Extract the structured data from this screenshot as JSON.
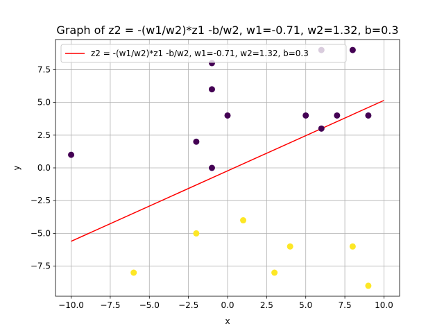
{
  "chart_data": {
    "type": "scatter",
    "title": "Graph of z2 = -(w1/w2)*z1 -b/w2, w1=-0.71, w2=1.32, b=0.3",
    "xlabel": "x",
    "ylabel": "y",
    "xlim": [
      -11,
      11
    ],
    "ylim": [
      -9.8,
      9.8
    ],
    "xticks": [
      -10.0,
      -7.5,
      -5.0,
      -2.5,
      0.0,
      2.5,
      5.0,
      7.5,
      10.0
    ],
    "yticks": [
      -7.5,
      -5.0,
      -2.5,
      0.0,
      2.5,
      5.0,
      7.5
    ],
    "xtick_labels": [
      "−10.0",
      "−7.5",
      "−5.0",
      "−2.5",
      "0.0",
      "2.5",
      "5.0",
      "7.5",
      "10.0"
    ],
    "ytick_labels": [
      "−7.5",
      "−5.0",
      "−2.5",
      "0.0",
      "2.5",
      "5.0",
      "7.5"
    ],
    "grid": true,
    "legend_position": "top-left",
    "colors": {
      "class_0": "#440154",
      "class_1": "#fde725",
      "line": "#ff0000"
    },
    "points": [
      {
        "x": -10,
        "y": 1,
        "class": 0
      },
      {
        "x": -2,
        "y": 2,
        "class": 0
      },
      {
        "x": -1,
        "y": 0,
        "class": 0
      },
      {
        "x": -1,
        "y": 6,
        "class": 0
      },
      {
        "x": -1,
        "y": 8,
        "class": 0
      },
      {
        "x": 0,
        "y": 4,
        "class": 0
      },
      {
        "x": 5,
        "y": 4,
        "class": 0
      },
      {
        "x": 6,
        "y": 3,
        "class": 0
      },
      {
        "x": 6,
        "y": 9,
        "class": 0
      },
      {
        "x": 7,
        "y": 4,
        "class": 0
      },
      {
        "x": 8,
        "y": 9,
        "class": 0
      },
      {
        "x": 9,
        "y": 4,
        "class": 0
      },
      {
        "x": -6,
        "y": -8,
        "class": 1
      },
      {
        "x": -2,
        "y": -5,
        "class": 1
      },
      {
        "x": 1,
        "y": -4,
        "class": 1
      },
      {
        "x": 3,
        "y": -8,
        "class": 1
      },
      {
        "x": 4,
        "y": -6,
        "class": 1
      },
      {
        "x": 8,
        "y": -6,
        "class": 1
      },
      {
        "x": 9,
        "y": -9,
        "class": 1
      }
    ],
    "series": [
      {
        "name": "z2 = -(w1/w2)*z1 -b/w2, w1=-0.71, w2=1.32, b=0.3",
        "type": "line",
        "x": [
          -10,
          10
        ],
        "y": [
          -5.6061,
          5.1515
        ]
      }
    ]
  }
}
